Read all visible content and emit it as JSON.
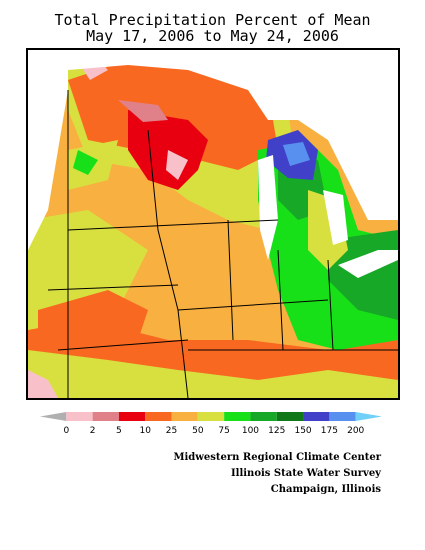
{
  "title": {
    "line1": "Total Precipitation Percent of Mean",
    "line2": "May 17, 2006 to May 24, 2006"
  },
  "legend": {
    "bins": [
      {
        "color": "#b0b0b0"
      },
      {
        "color": "#f8c0c8"
      },
      {
        "color": "#e08088"
      },
      {
        "color": "#e80010"
      },
      {
        "color": "#f86820"
      },
      {
        "color": "#f8b040"
      },
      {
        "color": "#d8e040"
      },
      {
        "color": "#18e018"
      },
      {
        "color": "#18a828"
      },
      {
        "color": "#107818"
      },
      {
        "color": "#4040c8"
      },
      {
        "color": "#5890f0"
      },
      {
        "color": "#70d0f8"
      }
    ],
    "labels": [
      "0",
      "2",
      "5",
      "10",
      "25",
      "50",
      "75",
      "100",
      "125",
      "150",
      "175",
      "200"
    ]
  },
  "credits": {
    "line1": "Midwestern Regional Climate Center",
    "line2": "Illinois State Water Survey",
    "line3": "Champaign, Illinois"
  }
}
